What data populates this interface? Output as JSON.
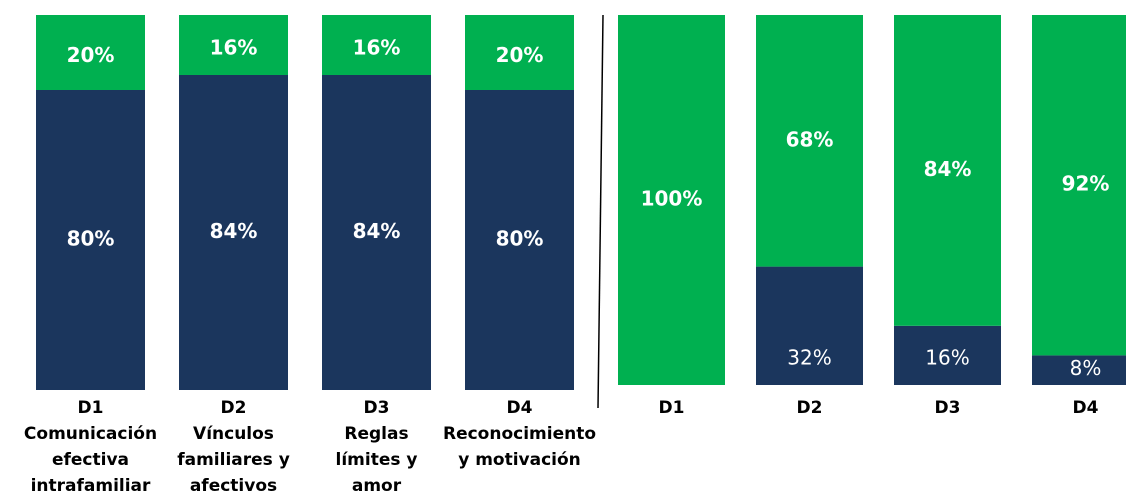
{
  "chart_data": [
    {
      "type": "bar",
      "stacked": true,
      "categories": [
        "D1\nComunicación\nefectiva\nintrafamiliar",
        "D2\nVínculos\nfamiliares y\nafectivos",
        "D3\nReglas\nlímites y\namor",
        "D4\nReconocimiento\ny motivación"
      ],
      "ylim": [
        0,
        100
      ],
      "series": [
        {
          "color": "#1b365d",
          "values": [
            80,
            84,
            84,
            80
          ],
          "value_labels": [
            "80%",
            "84%",
            "84%",
            "80%"
          ]
        },
        {
          "color": "#00b050",
          "values": [
            20,
            16,
            16,
            20
          ],
          "value_labels": [
            "20%",
            "16%",
            "16%",
            "20%"
          ]
        }
      ]
    },
    {
      "type": "bar",
      "stacked": true,
      "categories": [
        "D1",
        "D2",
        "D3",
        "D4"
      ],
      "ylim": [
        0,
        100
      ],
      "series": [
        {
          "color": "#1b365d",
          "values": [
            0,
            32,
            16,
            8
          ],
          "value_labels": [
            null,
            "32%",
            "16%",
            "8%"
          ]
        },
        {
          "color": "#00b050",
          "values": [
            100,
            68,
            84,
            92
          ],
          "value_labels": [
            "100%",
            "68%",
            "84%",
            "92%"
          ]
        }
      ]
    }
  ]
}
